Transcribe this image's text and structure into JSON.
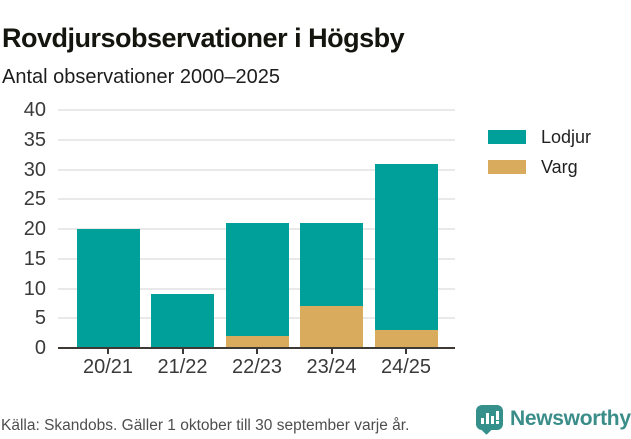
{
  "chart_data": {
    "type": "bar",
    "stacked": true,
    "title": "Rovdjursobservationer i Högsby",
    "subtitle": "Antal observationer 2000–2025",
    "categories": [
      "20/21",
      "21/22",
      "22/23",
      "23/24",
      "24/25"
    ],
    "series": [
      {
        "name": "Varg",
        "color": "#d9ab5c",
        "values": [
          0,
          0,
          2,
          7,
          3
        ]
      },
      {
        "name": "Lodjur",
        "color": "#00a09a",
        "values": [
          20,
          9,
          19,
          14,
          28
        ]
      }
    ],
    "totals": [
      20,
      9,
      21,
      21,
      31
    ],
    "ylim": [
      0,
      40
    ],
    "yticks": [
      0,
      5,
      10,
      15,
      20,
      25,
      30,
      35,
      40
    ],
    "grid": true,
    "legend_position": "right-top",
    "legend": [
      {
        "label": "Lodjur",
        "color": "#00a09a"
      },
      {
        "label": "Varg",
        "color": "#d9ab5c"
      }
    ]
  },
  "footer": {
    "source": "Källa: Skandobs. Gäller 1 oktober till 30 september varje år.",
    "brand": "Newsworthy",
    "brand_color": "#3a8d89",
    "logo_icon": "bar-chart-speech-bubble-icon"
  }
}
